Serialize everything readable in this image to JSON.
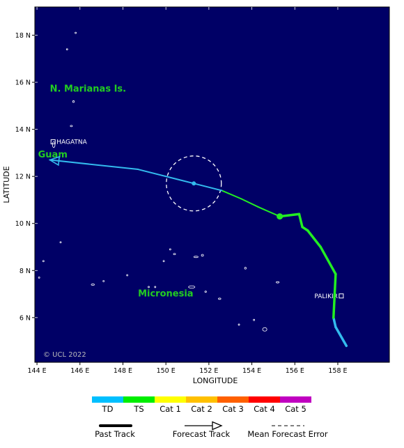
{
  "map": {
    "lon_range": [
      143.9,
      160.4
    ],
    "lat_range": [
      4.1,
      19.2
    ],
    "x_ticks": [
      {
        "v": 144,
        "label": "144 E"
      },
      {
        "v": 146,
        "label": "146 E"
      },
      {
        "v": 148,
        "label": "148 E"
      },
      {
        "v": 150,
        "label": "150 E"
      },
      {
        "v": 152,
        "label": "152 E"
      },
      {
        "v": 154,
        "label": "154 E"
      },
      {
        "v": 156,
        "label": "156 E"
      },
      {
        "v": 158,
        "label": "158 E"
      }
    ],
    "y_ticks": [
      {
        "v": 6,
        "label": "6 N"
      },
      {
        "v": 8,
        "label": "8 N"
      },
      {
        "v": 10,
        "label": "10 N"
      },
      {
        "v": 12,
        "label": "12 N"
      },
      {
        "v": 14,
        "label": "14 N"
      },
      {
        "v": 16,
        "label": "16 N"
      },
      {
        "v": 18,
        "label": "18 N"
      }
    ],
    "xlabel": "LONGITUDE",
    "ylabel": "LATITUDE",
    "copyright": "© UCL 2022",
    "colors": {
      "ocean": "#000066",
      "land": "#ffffff",
      "region_label": "#22cc22",
      "city_label": "#ffffff",
      "td": "#33bbee",
      "ts": "#22ee22"
    }
  },
  "regions": [
    {
      "name": "N. Marianas Is.",
      "lon": 144.6,
      "lat": 15.6
    },
    {
      "name": "Guam",
      "lon": 144.05,
      "lat": 12.8
    },
    {
      "name": "Micronesia",
      "lon": 148.7,
      "lat": 6.9
    }
  ],
  "cities": [
    {
      "name": "HAGATNA",
      "lon": 144.75,
      "lat": 13.47,
      "label_side": "right"
    },
    {
      "name": "PALIKIR",
      "lon": 158.16,
      "lat": 6.92,
      "label_side": "left"
    }
  ],
  "islands": [
    {
      "lon": 144.78,
      "lat": 13.35,
      "w": 0.12,
      "h": 0.25
    },
    {
      "lon": 145.7,
      "lat": 15.18,
      "w": 0.08,
      "h": 0.08
    },
    {
      "lon": 145.6,
      "lat": 14.14,
      "w": 0.1,
      "h": 0.05
    },
    {
      "lon": 145.8,
      "lat": 18.1,
      "w": 0.04,
      "h": 0.04
    },
    {
      "lon": 145.4,
      "lat": 17.4,
      "w": 0.03,
      "h": 0.03
    },
    {
      "lon": 144.3,
      "lat": 8.4,
      "w": 0.03,
      "h": 0.03
    },
    {
      "lon": 145.1,
      "lat": 9.2,
      "w": 0.03,
      "h": 0.03
    },
    {
      "lon": 146.6,
      "lat": 7.4,
      "w": 0.15,
      "h": 0.04
    },
    {
      "lon": 147.1,
      "lat": 7.55,
      "w": 0.04,
      "h": 0.03
    },
    {
      "lon": 148.2,
      "lat": 7.8,
      "w": 0.04,
      "h": 0.03
    },
    {
      "lon": 149.5,
      "lat": 7.3,
      "w": 0.06,
      "h": 0.04
    },
    {
      "lon": 149.2,
      "lat": 7.3,
      "w": 0.04,
      "h": 0.03
    },
    {
      "lon": 150.2,
      "lat": 8.9,
      "w": 0.06,
      "h": 0.04
    },
    {
      "lon": 150.4,
      "lat": 8.7,
      "w": 0.1,
      "h": 0.05
    },
    {
      "lon": 151.4,
      "lat": 8.58,
      "w": 0.2,
      "h": 0.06
    },
    {
      "lon": 151.7,
      "lat": 8.65,
      "w": 0.1,
      "h": 0.08
    },
    {
      "lon": 151.2,
      "lat": 7.3,
      "w": 0.3,
      "h": 0.1
    },
    {
      "lon": 151.85,
      "lat": 7.1,
      "w": 0.08,
      "h": 0.05
    },
    {
      "lon": 152.5,
      "lat": 6.8,
      "w": 0.12,
      "h": 0.06
    },
    {
      "lon": 153.7,
      "lat": 8.1,
      "w": 0.08,
      "h": 0.08
    },
    {
      "lon": 154.1,
      "lat": 5.9,
      "w": 0.06,
      "h": 0.04
    },
    {
      "lon": 154.6,
      "lat": 5.5,
      "w": 0.2,
      "h": 0.15
    },
    {
      "lon": 155.2,
      "lat": 7.5,
      "w": 0.14,
      "h": 0.04
    },
    {
      "lon": 149.9,
      "lat": 8.4,
      "w": 0.04,
      "h": 0.04
    },
    {
      "lon": 144.1,
      "lat": 7.7,
      "w": 0.04,
      "h": 0.03
    },
    {
      "lon": 153.4,
      "lat": 5.7,
      "w": 0.04,
      "h": 0.04
    }
  ],
  "track": {
    "points": [
      {
        "lon": 158.4,
        "lat": 4.8,
        "cat": "TD"
      },
      {
        "lon": 157.9,
        "lat": 5.6,
        "cat": "TD"
      },
      {
        "lon": 157.8,
        "lat": 6.0,
        "cat": "TD"
      },
      {
        "lon": 157.9,
        "lat": 7.85,
        "cat": "TS"
      },
      {
        "lon": 157.2,
        "lat": 9.0,
        "cat": "TS"
      },
      {
        "lon": 156.6,
        "lat": 9.7,
        "cat": "TS"
      },
      {
        "lon": 156.35,
        "lat": 9.85,
        "cat": "TS"
      },
      {
        "lon": 156.2,
        "lat": 10.4,
        "cat": "TS"
      },
      {
        "lon": 155.3,
        "lat": 10.3,
        "cat": "TS"
      }
    ],
    "current": {
      "lon": 155.3,
      "lat": 10.3
    },
    "forecast": [
      {
        "lon": 155.3,
        "lat": 10.3,
        "cat": "TS"
      },
      {
        "lon": 154.3,
        "lat": 10.7,
        "cat": "TS"
      },
      {
        "lon": 153.5,
        "lat": 11.05,
        "cat": "TS"
      },
      {
        "lon": 152.6,
        "lat": 11.4,
        "cat": "TS"
      },
      {
        "lon": 151.3,
        "lat": 11.7,
        "cat": "TD"
      },
      {
        "lon": 148.7,
        "lat": 12.3,
        "cat": "TD"
      },
      {
        "lon": 144.6,
        "lat": 12.7,
        "cat": "TD"
      }
    ],
    "forecast_point": {
      "lon": 151.3,
      "lat": 11.7
    },
    "error_circle": {
      "lon": 151.3,
      "lat": 11.7,
      "radius_deg": 1.28
    }
  },
  "legend": {
    "categories": [
      {
        "label": "TD",
        "color": "#00bfff"
      },
      {
        "label": "TS",
        "color": "#00ee00"
      },
      {
        "label": "Cat 1",
        "color": "#ffff00"
      },
      {
        "label": "Cat 2",
        "color": "#ffc000"
      },
      {
        "label": "Cat 3",
        "color": "#ff6000"
      },
      {
        "label": "Cat 4",
        "color": "#ff0000"
      },
      {
        "label": "Cat 5",
        "color": "#c000c0"
      }
    ],
    "past_track_label": "Past Track",
    "forecast_track_label": "Forecast Track",
    "mean_error_label": "Mean Forecast Error"
  }
}
